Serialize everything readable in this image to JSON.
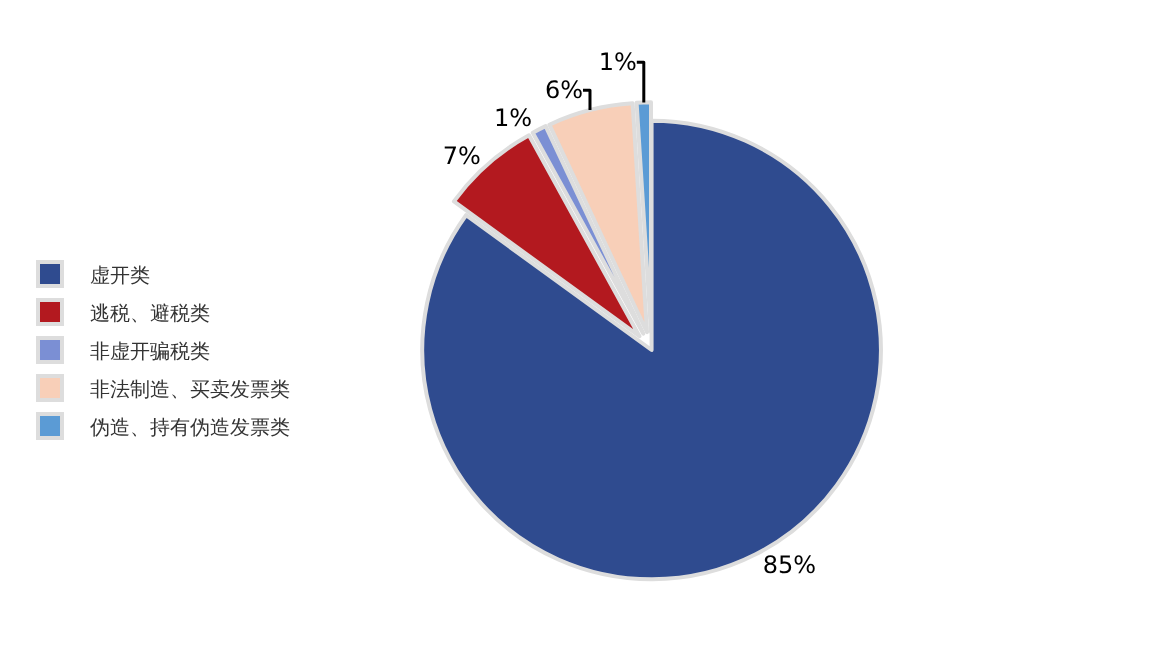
{
  "chart_data": {
    "type": "pie",
    "categories": [
      "虚开类",
      "逃税、避税类",
      "非虚开骗税类",
      "非法制造、买卖发票类",
      "伪造、持有伪造发票类"
    ],
    "values": [
      85,
      7,
      1,
      6,
      1
    ],
    "value_labels": [
      "85%",
      "7%",
      "1%",
      "6%",
      "1%"
    ],
    "colors": [
      "#2f4b8f",
      "#b3191f",
      "#7b8fd4",
      "#f8cfb8",
      "#5b9bd5"
    ],
    "legend": "left"
  }
}
